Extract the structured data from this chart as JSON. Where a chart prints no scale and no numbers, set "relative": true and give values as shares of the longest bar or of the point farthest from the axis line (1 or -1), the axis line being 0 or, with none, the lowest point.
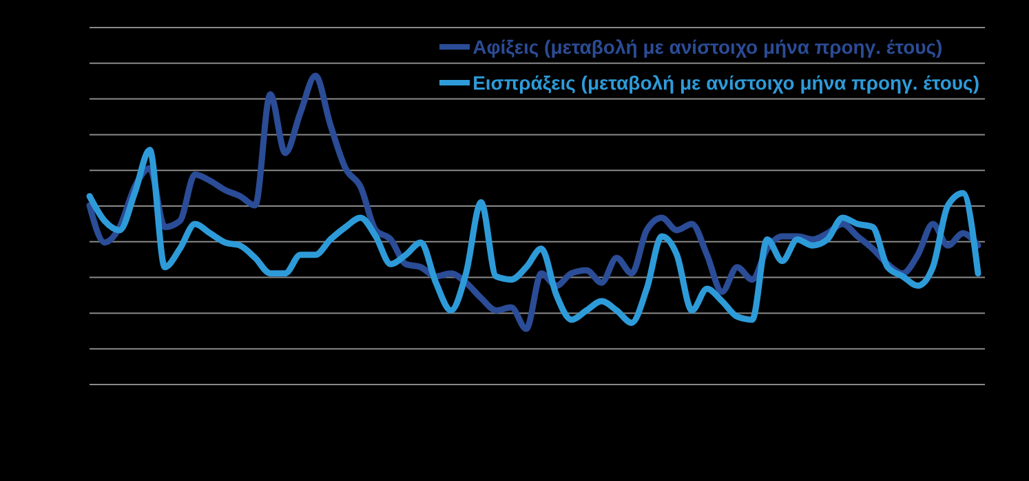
{
  "chart_data": {
    "type": "line",
    "relative": true,
    "grid": "y",
    "legend": "top right",
    "marker": "none",
    "line_style": "solid",
    "categories": [
      null,
      null,
      null,
      null,
      null,
      null,
      null,
      null,
      null,
      null,
      null,
      null,
      null,
      null,
      null,
      null,
      null,
      null,
      null,
      null,
      null,
      null,
      null,
      null,
      null,
      null,
      null,
      null,
      null,
      null,
      null,
      null,
      null,
      null,
      null,
      null,
      null,
      null,
      null,
      null,
      null,
      null,
      null,
      null,
      null,
      null,
      null,
      null,
      null,
      null,
      null,
      null,
      null,
      null,
      null,
      null,
      null,
      null,
      null,
      null
    ],
    "series": [
      {
        "name": "Αφίξεις (μεταβολή με ανίστοιχο μήνα προηγ. έτους)",
        "color": "#2b4c96",
        "values": [
          0.58,
          0.46,
          0.51,
          0.64,
          0.7,
          0.51,
          0.53,
          0.68,
          0.66,
          0.63,
          0.61,
          0.58,
          0.94,
          0.75,
          0.88,
          1,
          0.84,
          0.7,
          0.64,
          0.5,
          0.47,
          0.39,
          0.38,
          0.35,
          0.36,
          0.33,
          0.28,
          0.24,
          0.25,
          0.18,
          0.36,
          0.32,
          0.36,
          0.37,
          0.33,
          0.41,
          0.36,
          0.5,
          0.54,
          0.5,
          0.52,
          0.42,
          0.3,
          0.38,
          0.34,
          0.44,
          0.48,
          0.48,
          0.47,
          0.49,
          0.52,
          0.48,
          0.44,
          0.39,
          0.36,
          0.42,
          0.52,
          0.45,
          0.49,
          0.45
        ]
      },
      {
        "name": "Εισπράξεις (μεταβολή με ανίστοιχο μήνα προηγ. έτους)",
        "color": "#2e9bd9",
        "values": [
          0.61,
          0.53,
          0.5,
          0.62,
          0.76,
          0.38,
          0.44,
          0.52,
          0.49,
          0.46,
          0.45,
          0.41,
          0.36,
          0.36,
          0.42,
          0.42,
          0.47,
          0.51,
          0.54,
          0.48,
          0.39,
          0.42,
          0.46,
          0.33,
          0.24,
          0.36,
          0.59,
          0.35,
          0.34,
          0.38,
          0.44,
          0.29,
          0.21,
          0.24,
          0.27,
          0.24,
          0.2,
          0.31,
          0.48,
          0.42,
          0.24,
          0.31,
          0.27,
          0.22,
          0.21,
          0.47,
          0.4,
          0.47,
          0.45,
          0.47,
          0.54,
          0.52,
          0.51,
          0.38,
          0.35,
          0.32,
          0.38,
          0.58,
          0.62,
          0.36
        ]
      }
    ]
  }
}
